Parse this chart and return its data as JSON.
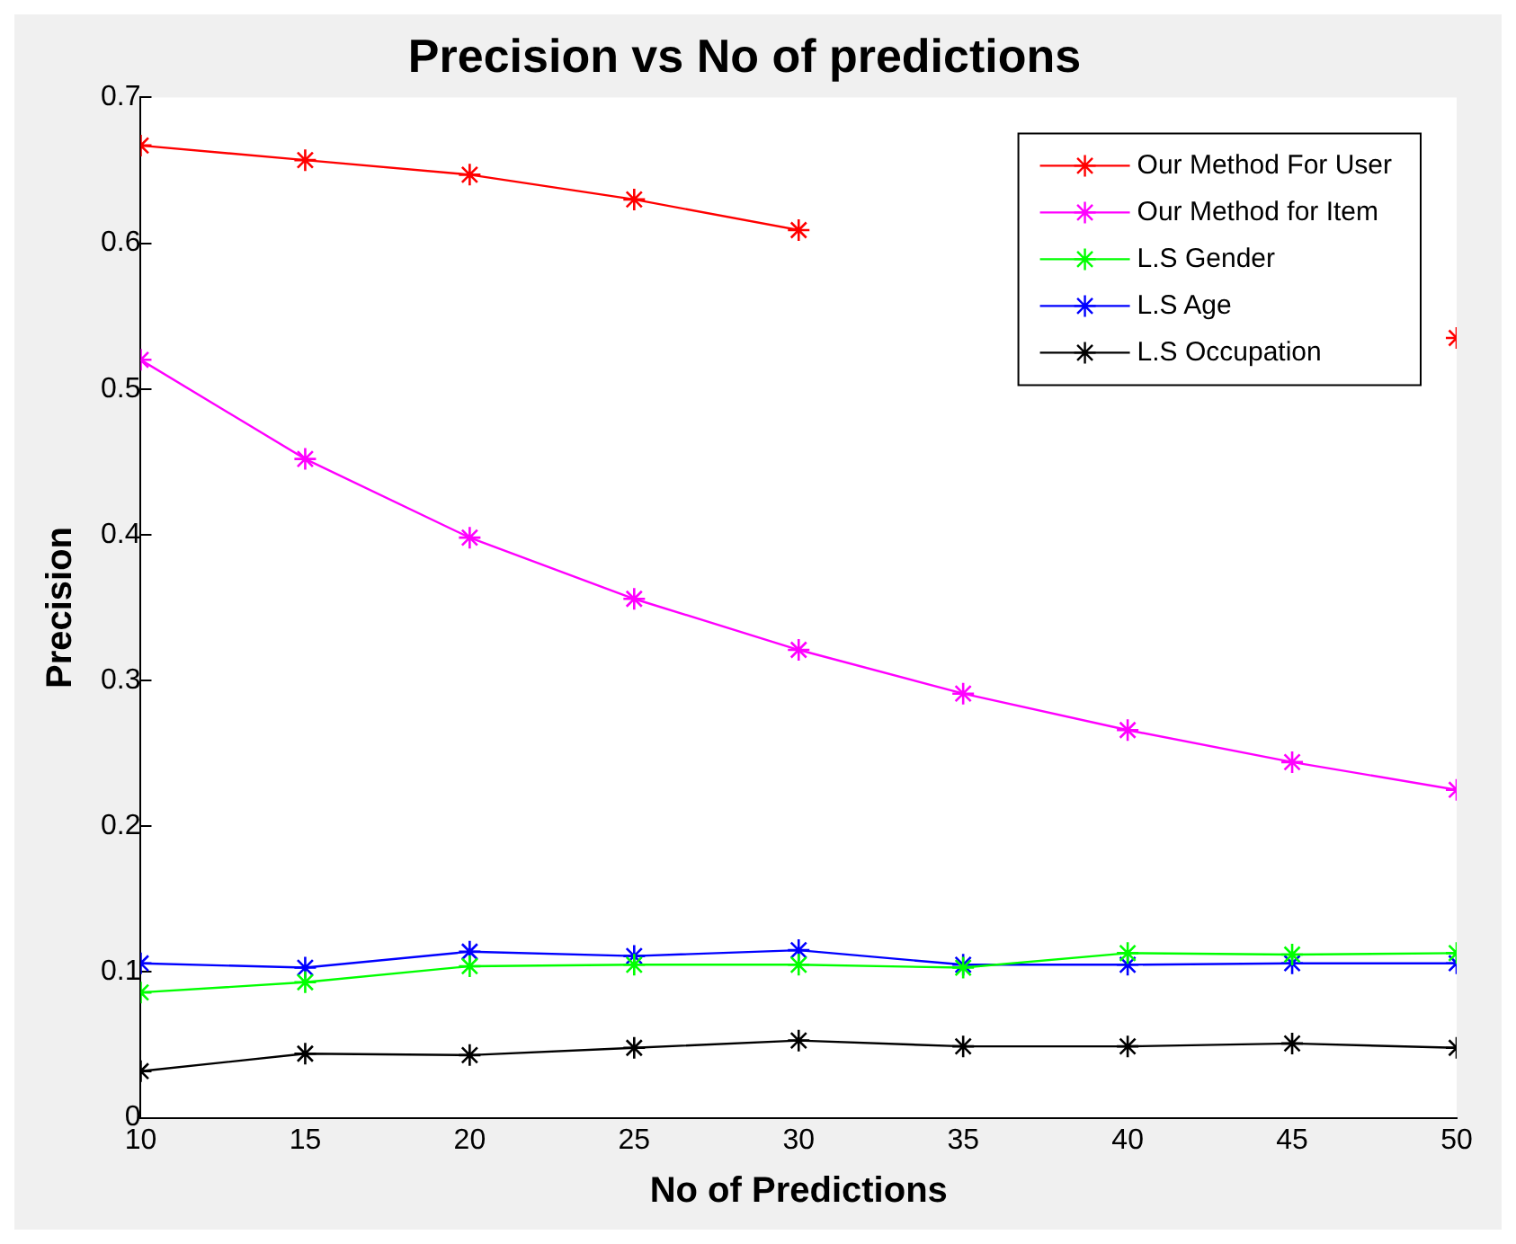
{
  "chart_data": {
    "type": "line",
    "title": "Precision vs No of predictions",
    "xlabel": "No of Predictions",
    "ylabel": "Precision",
    "x": [
      10,
      15,
      20,
      25,
      30,
      35,
      40,
      45,
      50
    ],
    "xlim": [
      10,
      50
    ],
    "xticks": [
      10,
      15,
      20,
      25,
      30,
      35,
      40,
      45,
      50
    ],
    "ylim": [
      0,
      0.7
    ],
    "yticks": [
      0,
      0.1,
      0.2,
      0.3,
      0.4,
      0.5,
      0.6,
      0.7
    ],
    "grid": false,
    "legend": "top right",
    "marker": "cross",
    "line_style": "solid",
    "series": [
      {
        "name": "Our Method For User",
        "color": "#ff0000",
        "values": [
          0.667,
          0.657,
          0.647,
          0.63,
          0.609,
          null,
          null,
          null,
          0.535
        ]
      },
      {
        "name": "Our Method for Item",
        "color": "#ff00ff",
        "values": [
          0.52,
          0.452,
          0.398,
          0.356,
          0.321,
          0.291,
          0.266,
          0.244,
          0.225
        ]
      },
      {
        "name": "L.S Gender",
        "color": "#00ff00",
        "values": [
          0.086,
          0.093,
          0.104,
          0.105,
          0.105,
          0.103,
          0.113,
          0.112,
          0.113
        ]
      },
      {
        "name": "L.S Age",
        "color": "#0000ff",
        "values": [
          0.106,
          0.103,
          0.114,
          0.111,
          0.115,
          0.105,
          0.105,
          0.106,
          0.106
        ]
      },
      {
        "name": "L.S Occupation",
        "color": "#000000",
        "values": [
          0.032,
          0.044,
          0.043,
          0.048,
          0.053,
          0.049,
          0.049,
          0.051,
          0.048
        ]
      }
    ]
  }
}
